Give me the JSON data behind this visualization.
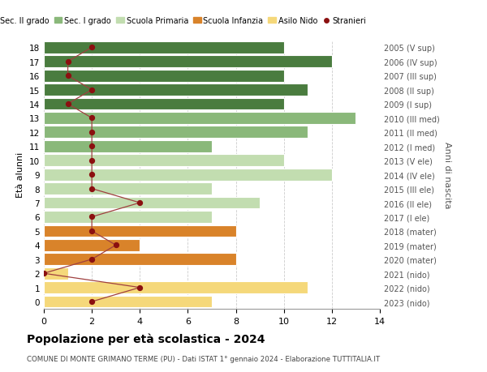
{
  "ages": [
    18,
    17,
    16,
    15,
    14,
    13,
    12,
    11,
    10,
    9,
    8,
    7,
    6,
    5,
    4,
    3,
    2,
    1,
    0
  ],
  "anni_nascita": [
    "2005 (V sup)",
    "2006 (IV sup)",
    "2007 (III sup)",
    "2008 (II sup)",
    "2009 (I sup)",
    "2010 (III med)",
    "2011 (II med)",
    "2012 (I med)",
    "2013 (V ele)",
    "2014 (IV ele)",
    "2015 (III ele)",
    "2016 (II ele)",
    "2017 (I ele)",
    "2018 (mater)",
    "2019 (mater)",
    "2020 (mater)",
    "2021 (nido)",
    "2022 (nido)",
    "2023 (nido)"
  ],
  "bar_values": [
    10,
    12,
    10,
    11,
    10,
    13,
    11,
    7,
    10,
    12,
    7,
    9,
    7,
    8,
    4,
    8,
    1,
    11,
    7
  ],
  "bar_colors": [
    "#4a7c3f",
    "#4a7c3f",
    "#4a7c3f",
    "#4a7c3f",
    "#4a7c3f",
    "#8ab87a",
    "#8ab87a",
    "#8ab87a",
    "#c2ddb0",
    "#c2ddb0",
    "#c2ddb0",
    "#c2ddb0",
    "#c2ddb0",
    "#d9832a",
    "#d9832a",
    "#d9832a",
    "#f5d87a",
    "#f5d87a",
    "#f5d87a"
  ],
  "stranieri_values": [
    2,
    1,
    1,
    2,
    1,
    2,
    2,
    2,
    2,
    2,
    2,
    4,
    2,
    2,
    3,
    2,
    0,
    4,
    2
  ],
  "legend_labels": [
    "Sec. II grado",
    "Sec. I grado",
    "Scuola Primaria",
    "Scuola Infanzia",
    "Asilo Nido",
    "Stranieri"
  ],
  "legend_colors": [
    "#4a7c3f",
    "#8ab87a",
    "#c2ddb0",
    "#d9832a",
    "#f5d87a",
    "#8b0000"
  ],
  "ylabel": "Età alunni",
  "right_ylabel": "Anni di nascita",
  "title": "Popolazione per età scolastica - 2024",
  "subtitle": "COMUNE DI MONTE GRIMANO TERME (PU) - Dati ISTAT 1° gennaio 2024 - Elaborazione TUTTITALIA.IT",
  "xlim": [
    0,
    14
  ],
  "background_color": "#ffffff",
  "grid_color": "#cccccc",
  "stranieri_line_color": "#a04040",
  "stranieri_dot_color": "#8b1010"
}
